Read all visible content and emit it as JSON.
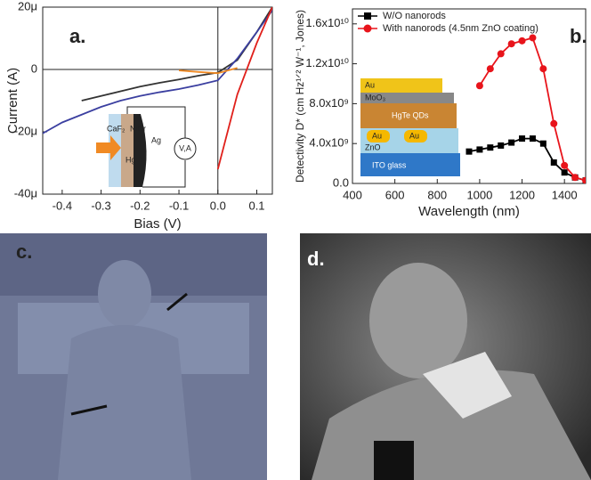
{
  "chart_data": [
    {
      "type": "line",
      "panel_label": "a.",
      "x_label": "Bias (V)",
      "y_label": "Current (A)",
      "x": [
        -0.45,
        -0.4,
        -0.35,
        -0.3,
        -0.25,
        -0.2,
        -0.15,
        -0.1,
        -0.05,
        0,
        0.05,
        0.1,
        0.14
      ],
      "series": [
        {
          "color": "#333333",
          "values": [
            null,
            null,
            -1e-05,
            -8.5e-06,
            -7e-06,
            -5.5e-06,
            -4.3e-06,
            -3.2e-06,
            -2e-06,
            -1e-06,
            3e-06,
            1.2e-05,
            2e-05
          ]
        },
        {
          "color": "#3b3fa0",
          "values": [
            -2.05e-05,
            -1.7e-05,
            -1.45e-05,
            -1.2e-05,
            -1e-05,
            -8.5e-06,
            -7.3e-06,
            -6.3e-06,
            -5e-06,
            -3.5e-06,
            3.5e-06,
            1.2e-05,
            1.9e-05
          ]
        },
        {
          "color": "#f08a24",
          "values": [
            null,
            null,
            null,
            null,
            null,
            null,
            null,
            -3e-07,
            -8e-07,
            -1.2e-06,
            5e-07,
            null,
            null
          ]
        },
        {
          "color": "#e0201b",
          "values": [
            null,
            null,
            null,
            null,
            null,
            null,
            null,
            null,
            null,
            -3.2e-05,
            -8e-06,
            8.5e-06,
            2e-05
          ]
        }
      ],
      "xlim": [
        -0.45,
        0.14
      ],
      "ylim": [
        -4e-05,
        2e-05
      ],
      "xticks": [
        -0.4,
        -0.3,
        -0.2,
        -0.1,
        {
          "value": 0,
          "label": "0.0"
        },
        0.1
      ],
      "yticks": [
        {
          "value": -4e-05,
          "label": "-40μ"
        },
        {
          "value": -2e-05,
          "label": "-20μ"
        },
        0,
        {
          "value": 2e-05,
          "label": "20μ"
        }
      ],
      "zero_lines": true,
      "inset_labels": [
        "CaF₂",
        "NiCr",
        "Ag",
        "HgTe",
        "V,A"
      ]
    },
    {
      "type": "line",
      "panel_label": "b.",
      "x_label": "Wavelength (nm)",
      "y_label": "Detectivity D* (cm Hz¹ᐟ² W⁻¹, Jones)",
      "x": [
        950,
        1000,
        1050,
        1100,
        1150,
        1200,
        1250,
        1300,
        1350,
        1400,
        1450,
        1500
      ],
      "series": [
        {
          "name": "W/O nanorods",
          "color": "#000000",
          "marker": "square",
          "values": [
            3200000000.0,
            3400000000.0,
            3600000000.0,
            3800000000.0,
            4100000000.0,
            4500000000.0,
            4500000000.0,
            4000000000.0,
            2100000000.0,
            1100000000.0,
            600000000.0,
            300000000.0
          ]
        },
        {
          "name": "With nanorods (4.5nm ZnO coating)",
          "color": "#e8141b",
          "marker": "circle",
          "values": [
            null,
            9800000000.0,
            11500000000.0,
            13000000000.0,
            14000000000.0,
            14300000000.0,
            14600000000.0,
            11500000000.0,
            6000000000.0,
            1800000000.0,
            600000000.0,
            300000000.0
          ]
        }
      ],
      "xlim": [
        400,
        1500
      ],
      "ylim": [
        0,
        17500000000.0
      ],
      "xticks": [
        400,
        600,
        800,
        1000,
        1200,
        1400
      ],
      "yticks": [
        {
          "value": 0,
          "label": "0.0"
        },
        {
          "value": 4000000000.0,
          "label": "4.0x10⁹"
        },
        {
          "value": 8000000000.0,
          "label": "8.0x10⁹"
        },
        {
          "value": 12000000000.0,
          "label": "1.2x10¹⁰"
        },
        {
          "value": 16000000000.0,
          "label": "1.6x10¹⁰"
        }
      ],
      "legend": "upper left",
      "inset_labels": [
        "Au",
        "MoO₃",
        "HgTe QDs",
        "Au",
        "Au",
        "ZnO",
        "ITO glass"
      ]
    }
  ],
  "images": [
    {
      "label": "c."
    },
    {
      "label": "d."
    }
  ]
}
